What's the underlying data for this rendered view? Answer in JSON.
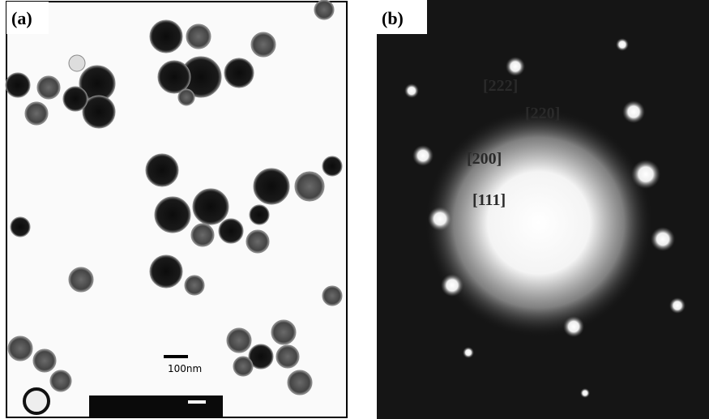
{
  "panels": [
    {
      "label": "(a)",
      "scale_bar": "100nm"
    },
    {
      "label": "(b)",
      "indices": [
        "[222]",
        "[220]",
        "[200]",
        "[111]"
      ]
    }
  ]
}
